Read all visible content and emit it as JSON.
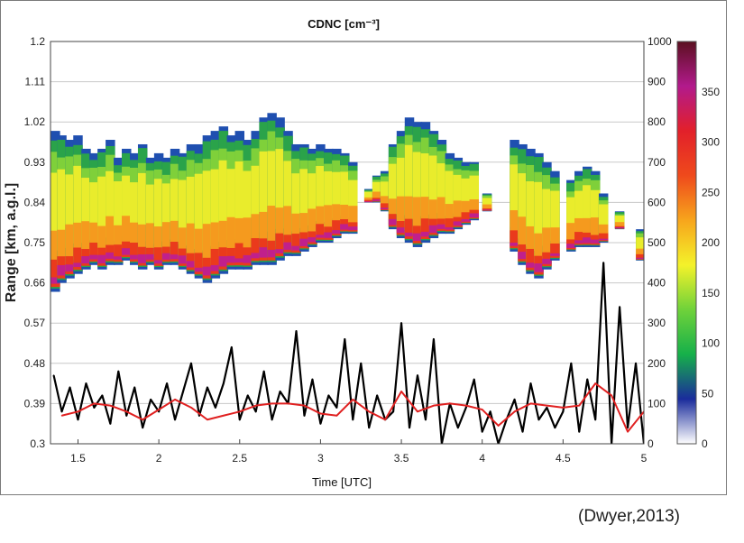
{
  "credit": "(Dwyer,2013)",
  "chart_data": {
    "type": "heatmap",
    "title": "CDNC [cm⁻³]",
    "xlabel": "Time [UTC]",
    "ylabel": "Range [km, a.g.l.]",
    "xlim": [
      1.33,
      5.0
    ],
    "ylim": [
      0.3,
      1.2
    ],
    "x_ticks": [
      "1.5",
      "2",
      "2.5",
      "3",
      "3.5",
      "4",
      "4.5",
      "5"
    ],
    "y_ticks": [
      "0.3",
      "0.39",
      "0.48",
      "0.57",
      "0.66",
      "0.75",
      "0.84",
      "0.93",
      "1.02",
      "1.11",
      "1.2"
    ],
    "y2_ticks": [
      "0",
      "100",
      "200",
      "300",
      "400",
      "500",
      "600",
      "700",
      "800",
      "900",
      "1000"
    ],
    "y2lim": [
      0,
      1000
    ],
    "grid": true,
    "colorbar": {
      "ticks": [
        "0",
        "50",
        "100",
        "150",
        "200",
        "250",
        "300",
        "350"
      ],
      "range": [
        0,
        400
      ],
      "colors": [
        "#ffffff",
        "#1a2c9c",
        "#16b04a",
        "#6fd23a",
        "#f4f22a",
        "#f7a51c",
        "#ef4a1c",
        "#e2202a",
        "#b21a8c",
        "#5b1020"
      ]
    },
    "cloud_columns": [
      {
        "t": 1.36,
        "base": 0.64,
        "top": 1.0
      },
      {
        "t": 1.4,
        "base": 0.66,
        "top": 0.99
      },
      {
        "t": 1.45,
        "base": 0.67,
        "top": 0.98
      },
      {
        "t": 1.5,
        "base": 0.68,
        "top": 0.99
      },
      {
        "t": 1.55,
        "base": 0.69,
        "top": 0.96
      },
      {
        "t": 1.6,
        "base": 0.7,
        "top": 0.95
      },
      {
        "t": 1.65,
        "base": 0.69,
        "top": 0.96
      },
      {
        "t": 1.7,
        "base": 0.7,
        "top": 0.98
      },
      {
        "t": 1.75,
        "base": 0.7,
        "top": 0.94
      },
      {
        "t": 1.8,
        "base": 0.71,
        "top": 0.96
      },
      {
        "t": 1.85,
        "base": 0.7,
        "top": 0.95
      },
      {
        "t": 1.9,
        "base": 0.69,
        "top": 0.97
      },
      {
        "t": 1.95,
        "base": 0.7,
        "top": 0.94
      },
      {
        "t": 2.0,
        "base": 0.69,
        "top": 0.95
      },
      {
        "t": 2.05,
        "base": 0.7,
        "top": 0.94
      },
      {
        "t": 2.1,
        "base": 0.7,
        "top": 0.96
      },
      {
        "t": 2.15,
        "base": 0.69,
        "top": 0.95
      },
      {
        "t": 2.2,
        "base": 0.68,
        "top": 0.97
      },
      {
        "t": 2.25,
        "base": 0.67,
        "top": 0.97
      },
      {
        "t": 2.3,
        "base": 0.66,
        "top": 0.99
      },
      {
        "t": 2.35,
        "base": 0.67,
        "top": 1.0
      },
      {
        "t": 2.4,
        "base": 0.68,
        "top": 1.01
      },
      {
        "t": 2.45,
        "base": 0.69,
        "top": 0.99
      },
      {
        "t": 2.5,
        "base": 0.69,
        "top": 1.0
      },
      {
        "t": 2.55,
        "base": 0.69,
        "top": 0.98
      },
      {
        "t": 2.6,
        "base": 0.7,
        "top": 1.0
      },
      {
        "t": 2.65,
        "base": 0.7,
        "top": 1.03
      },
      {
        "t": 2.7,
        "base": 0.7,
        "top": 1.04
      },
      {
        "t": 2.75,
        "base": 0.71,
        "top": 1.03
      },
      {
        "t": 2.8,
        "base": 0.72,
        "top": 1.0
      },
      {
        "t": 2.85,
        "base": 0.72,
        "top": 0.97
      },
      {
        "t": 2.9,
        "base": 0.73,
        "top": 0.97
      },
      {
        "t": 2.95,
        "base": 0.74,
        "top": 0.96
      },
      {
        "t": 3.0,
        "base": 0.75,
        "top": 0.97
      },
      {
        "t": 3.05,
        "base": 0.75,
        "top": 0.96
      },
      {
        "t": 3.1,
        "base": 0.76,
        "top": 0.96
      },
      {
        "t": 3.15,
        "base": 0.77,
        "top": 0.95
      },
      {
        "t": 3.2,
        "base": 0.77,
        "top": 0.93
      },
      {
        "t": 3.3,
        "base": 0.84,
        "top": 0.87
      },
      {
        "t": 3.35,
        "base": 0.84,
        "top": 0.9
      },
      {
        "t": 3.4,
        "base": 0.82,
        "top": 0.91
      },
      {
        "t": 3.45,
        "base": 0.78,
        "top": 0.97
      },
      {
        "t": 3.5,
        "base": 0.76,
        "top": 1.0
      },
      {
        "t": 3.55,
        "base": 0.75,
        "top": 1.03
      },
      {
        "t": 3.6,
        "base": 0.74,
        "top": 1.02
      },
      {
        "t": 3.65,
        "base": 0.75,
        "top": 1.02
      },
      {
        "t": 3.7,
        "base": 0.76,
        "top": 1.0
      },
      {
        "t": 3.75,
        "base": 0.77,
        "top": 0.98
      },
      {
        "t": 3.8,
        "base": 0.77,
        "top": 0.95
      },
      {
        "t": 3.85,
        "base": 0.78,
        "top": 0.94
      },
      {
        "t": 3.9,
        "base": 0.79,
        "top": 0.93
      },
      {
        "t": 3.95,
        "base": 0.8,
        "top": 0.93
      },
      {
        "t": 4.03,
        "base": 0.82,
        "top": 0.86
      },
      {
        "t": 4.2,
        "base": 0.73,
        "top": 0.98
      },
      {
        "t": 4.25,
        "base": 0.7,
        "top": 0.97
      },
      {
        "t": 4.3,
        "base": 0.68,
        "top": 0.96
      },
      {
        "t": 4.35,
        "base": 0.67,
        "top": 0.95
      },
      {
        "t": 4.4,
        "base": 0.69,
        "top": 0.93
      },
      {
        "t": 4.45,
        "base": 0.71,
        "top": 0.91
      },
      {
        "t": 4.55,
        "base": 0.73,
        "top": 0.89
      },
      {
        "t": 4.6,
        "base": 0.74,
        "top": 0.91
      },
      {
        "t": 4.65,
        "base": 0.74,
        "top": 0.92
      },
      {
        "t": 4.7,
        "base": 0.74,
        "top": 0.91
      },
      {
        "t": 4.75,
        "base": 0.75,
        "top": 0.86
      },
      {
        "t": 4.85,
        "base": 0.78,
        "top": 0.82
      },
      {
        "t": 4.98,
        "base": 0.71,
        "top": 0.78
      }
    ],
    "series": [
      {
        "color": "#000000",
        "axis": "right",
        "x": [
          1.35,
          1.4,
          1.45,
          1.5,
          1.55,
          1.6,
          1.65,
          1.7,
          1.75,
          1.8,
          1.85,
          1.9,
          1.95,
          2.0,
          2.05,
          2.1,
          2.15,
          2.2,
          2.25,
          2.3,
          2.35,
          2.4,
          2.45,
          2.5,
          2.55,
          2.6,
          2.65,
          2.7,
          2.75,
          2.8,
          2.85,
          2.9,
          2.95,
          3.0,
          3.05,
          3.1,
          3.15,
          3.2,
          3.25,
          3.3,
          3.35,
          3.4,
          3.45,
          3.5,
          3.55,
          3.6,
          3.65,
          3.7,
          3.75,
          3.8,
          3.85,
          3.9,
          3.95,
          4.0,
          4.05,
          4.1,
          4.15,
          4.2,
          4.25,
          4.3,
          4.35,
          4.4,
          4.45,
          4.5,
          4.55,
          4.6,
          4.65,
          4.7,
          4.75,
          4.8,
          4.85,
          4.9,
          4.95,
          5.0
        ],
        "values": [
          170,
          80,
          140,
          60,
          150,
          90,
          120,
          50,
          180,
          70,
          140,
          40,
          110,
          80,
          150,
          60,
          130,
          200,
          70,
          140,
          90,
          150,
          240,
          60,
          120,
          80,
          180,
          60,
          130,
          100,
          280,
          70,
          160,
          50,
          120,
          90,
          260,
          60,
          200,
          40,
          120,
          60,
          80,
          300,
          40,
          170,
          60,
          260,
          0,
          100,
          40,
          90,
          160,
          30,
          80,
          0,
          60,
          110,
          30,
          150,
          60,
          90,
          40,
          80,
          200,
          30,
          160,
          60,
          450,
          0,
          340,
          40,
          200,
          0
        ]
      },
      {
        "color": "#e02020",
        "axis": "right",
        "x": [
          1.4,
          1.5,
          1.6,
          1.7,
          1.8,
          1.9,
          2.0,
          2.1,
          2.2,
          2.3,
          2.4,
          2.5,
          2.6,
          2.7,
          2.8,
          2.9,
          3.0,
          3.1,
          3.2,
          3.3,
          3.4,
          3.5,
          3.6,
          3.7,
          3.8,
          3.9,
          4.0,
          4.1,
          4.2,
          4.3,
          4.4,
          4.5,
          4.6,
          4.7,
          4.8,
          4.9,
          5.0
        ],
        "values": [
          70,
          80,
          100,
          95,
          80,
          60,
          85,
          110,
          90,
          60,
          70,
          80,
          95,
          100,
          100,
          95,
          75,
          70,
          110,
          80,
          60,
          130,
          80,
          95,
          100,
          95,
          85,
          45,
          80,
          100,
          95,
          90,
          95,
          150,
          120,
          30,
          80
        ]
      }
    ]
  }
}
